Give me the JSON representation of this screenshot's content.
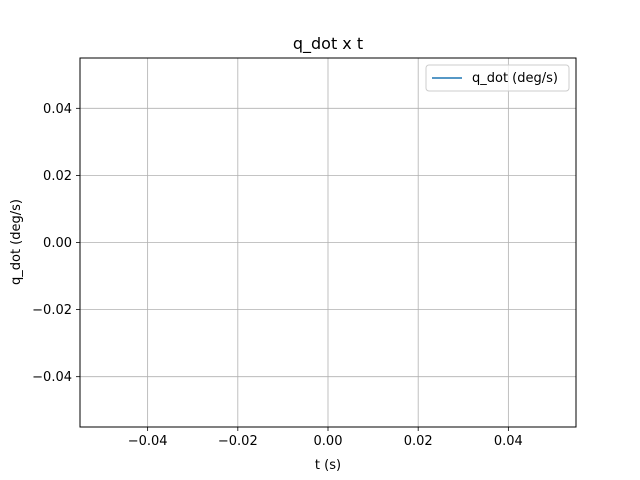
{
  "chart_data": {
    "type": "line",
    "title": "q_dot x t",
    "xlabel": "t (s)",
    "ylabel": "q_dot (deg/s)",
    "xlim": [
      -0.055,
      0.055
    ],
    "ylim": [
      -0.055,
      0.055
    ],
    "xticks": [
      -0.04,
      -0.02,
      0.0,
      0.02,
      0.04
    ],
    "xtick_labels": [
      "−0.04",
      "−0.02",
      "0.00",
      "0.02",
      "0.04"
    ],
    "yticks": [
      0.04,
      0.02,
      0.0,
      -0.02,
      -0.04
    ],
    "ytick_labels": [
      "0.04",
      "0.02",
      "0.00",
      "−0.02",
      "−0.04"
    ],
    "grid": true,
    "legend_position": "top-right",
    "series": [
      {
        "name": "q_dot (deg/s)",
        "color": "#1f77b4",
        "x": [],
        "y": []
      }
    ]
  }
}
